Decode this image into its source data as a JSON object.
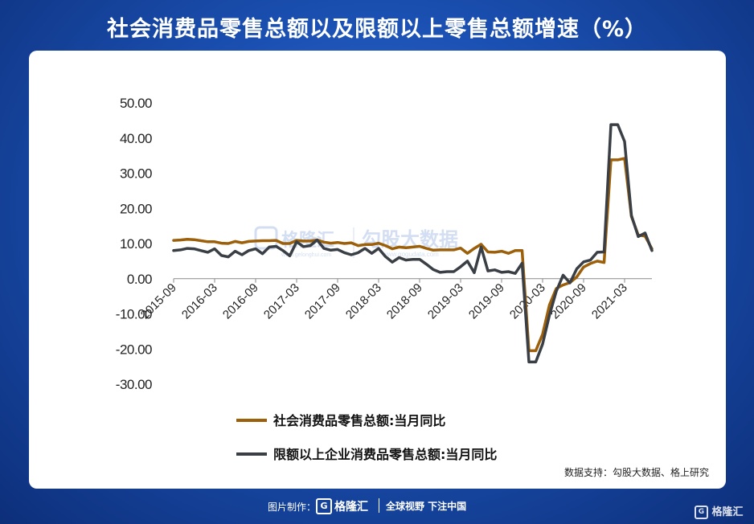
{
  "header": {
    "title": "社会消费品零售总额以及限额以上零售总额增速（%）"
  },
  "chart_data": {
    "type": "line",
    "x": [
      "2015-09",
      "2015-10",
      "2015-11",
      "2015-12",
      "2016-01",
      "2016-02",
      "2016-03",
      "2016-04",
      "2016-05",
      "2016-06",
      "2016-07",
      "2016-08",
      "2016-09",
      "2016-10",
      "2016-11",
      "2016-12",
      "2017-01",
      "2017-02",
      "2017-03",
      "2017-04",
      "2017-05",
      "2017-06",
      "2017-07",
      "2017-08",
      "2017-09",
      "2017-10",
      "2017-11",
      "2017-12",
      "2018-01",
      "2018-02",
      "2018-03",
      "2018-04",
      "2018-05",
      "2018-06",
      "2018-07",
      "2018-08",
      "2018-09",
      "2018-10",
      "2018-11",
      "2018-12",
      "2019-01",
      "2019-02",
      "2019-03",
      "2019-04",
      "2019-05",
      "2019-06",
      "2019-07",
      "2019-08",
      "2019-09",
      "2019-10",
      "2019-11",
      "2019-12",
      "2020-01",
      "2020-02",
      "2020-03",
      "2020-04",
      "2020-05",
      "2020-06",
      "2020-07",
      "2020-08",
      "2020-09",
      "2020-10",
      "2020-11",
      "2020-12",
      "2021-01",
      "2021-02",
      "2021-03",
      "2021-04",
      "2021-05",
      "2021-06",
      "2021-07"
    ],
    "x_ticks": [
      "2015-09",
      "2016-03",
      "2016-09",
      "2017-03",
      "2017-09",
      "2018-03",
      "2018-09",
      "2019-03",
      "2019-09",
      "2020-03",
      "2020-09",
      "2021-03"
    ],
    "y_ticks": [
      "50.00",
      "40.00",
      "30.00",
      "20.00",
      "10.00",
      "0.00",
      "-10.00",
      "-20.00",
      "-30.00"
    ],
    "ylim": [
      -30,
      50
    ],
    "series": [
      {
        "name": "社会消费品零售总额:当月同比",
        "color": "#9c5f0a",
        "values": [
          10.9,
          11.0,
          11.2,
          11.1,
          10.8,
          10.5,
          10.5,
          10.1,
          10.0,
          10.6,
          10.2,
          10.6,
          10.7,
          10.8,
          10.8,
          10.9,
          10.0,
          10.0,
          10.9,
          10.7,
          10.7,
          11.0,
          10.4,
          10.1,
          10.3,
          10.0,
          10.2,
          9.4,
          9.7,
          9.7,
          10.1,
          9.4,
          8.5,
          9.0,
          8.8,
          9.0,
          9.2,
          8.6,
          8.1,
          8.2,
          8.2,
          8.2,
          8.7,
          7.2,
          8.6,
          9.8,
          7.6,
          7.5,
          7.8,
          7.2,
          8.0,
          8.0,
          -20.5,
          -20.5,
          -15.8,
          -7.5,
          -2.8,
          -1.8,
          -1.1,
          0.5,
          3.3,
          4.3,
          5.0,
          4.6,
          33.8,
          33.8,
          34.2,
          17.7,
          12.4,
          12.1,
          8.5
        ]
      },
      {
        "name": "限额以上企业消费品零售总额:当月同比",
        "color": "#3a3f45",
        "values": [
          8.0,
          8.2,
          8.6,
          8.5,
          8.0,
          7.5,
          8.5,
          6.6,
          6.2,
          7.8,
          6.8,
          8.0,
          8.5,
          7.1,
          9.0,
          9.2,
          8.0,
          6.5,
          10.5,
          9.1,
          9.4,
          11.0,
          8.6,
          8.1,
          8.3,
          7.4,
          6.8,
          7.4,
          8.6,
          7.2,
          8.6,
          6.3,
          4.7,
          6.0,
          5.3,
          5.5,
          5.5,
          4.1,
          2.6,
          1.8,
          2.0,
          2.0,
          3.4,
          5.0,
          1.7,
          9.0,
          2.2,
          2.5,
          1.8,
          2.0,
          1.5,
          4.4,
          -23.7,
          -23.7,
          -18.6,
          -10.4,
          -3.6,
          1.0,
          -1.2,
          2.8,
          4.8,
          5.3,
          7.5,
          7.6,
          43.8,
          43.8,
          39.0,
          18.0,
          12.0,
          13.0,
          8.0
        ]
      }
    ],
    "grid": false,
    "legend": "bottom"
  },
  "source": "数据支持：勾股大数据、格上研究",
  "watermark": {
    "brand": "格隆汇",
    "brand_url": "www.gelonghui.com",
    "partner": "勾股大数据",
    "partner_url": "www.gogudata.com"
  },
  "footer": {
    "credit": "图片制作：",
    "logo_char": "G",
    "brand": "格隆汇",
    "slogan": "全球视野 下注中国"
  },
  "corner_logo": {
    "char": "G",
    "brand": "格隆汇"
  }
}
